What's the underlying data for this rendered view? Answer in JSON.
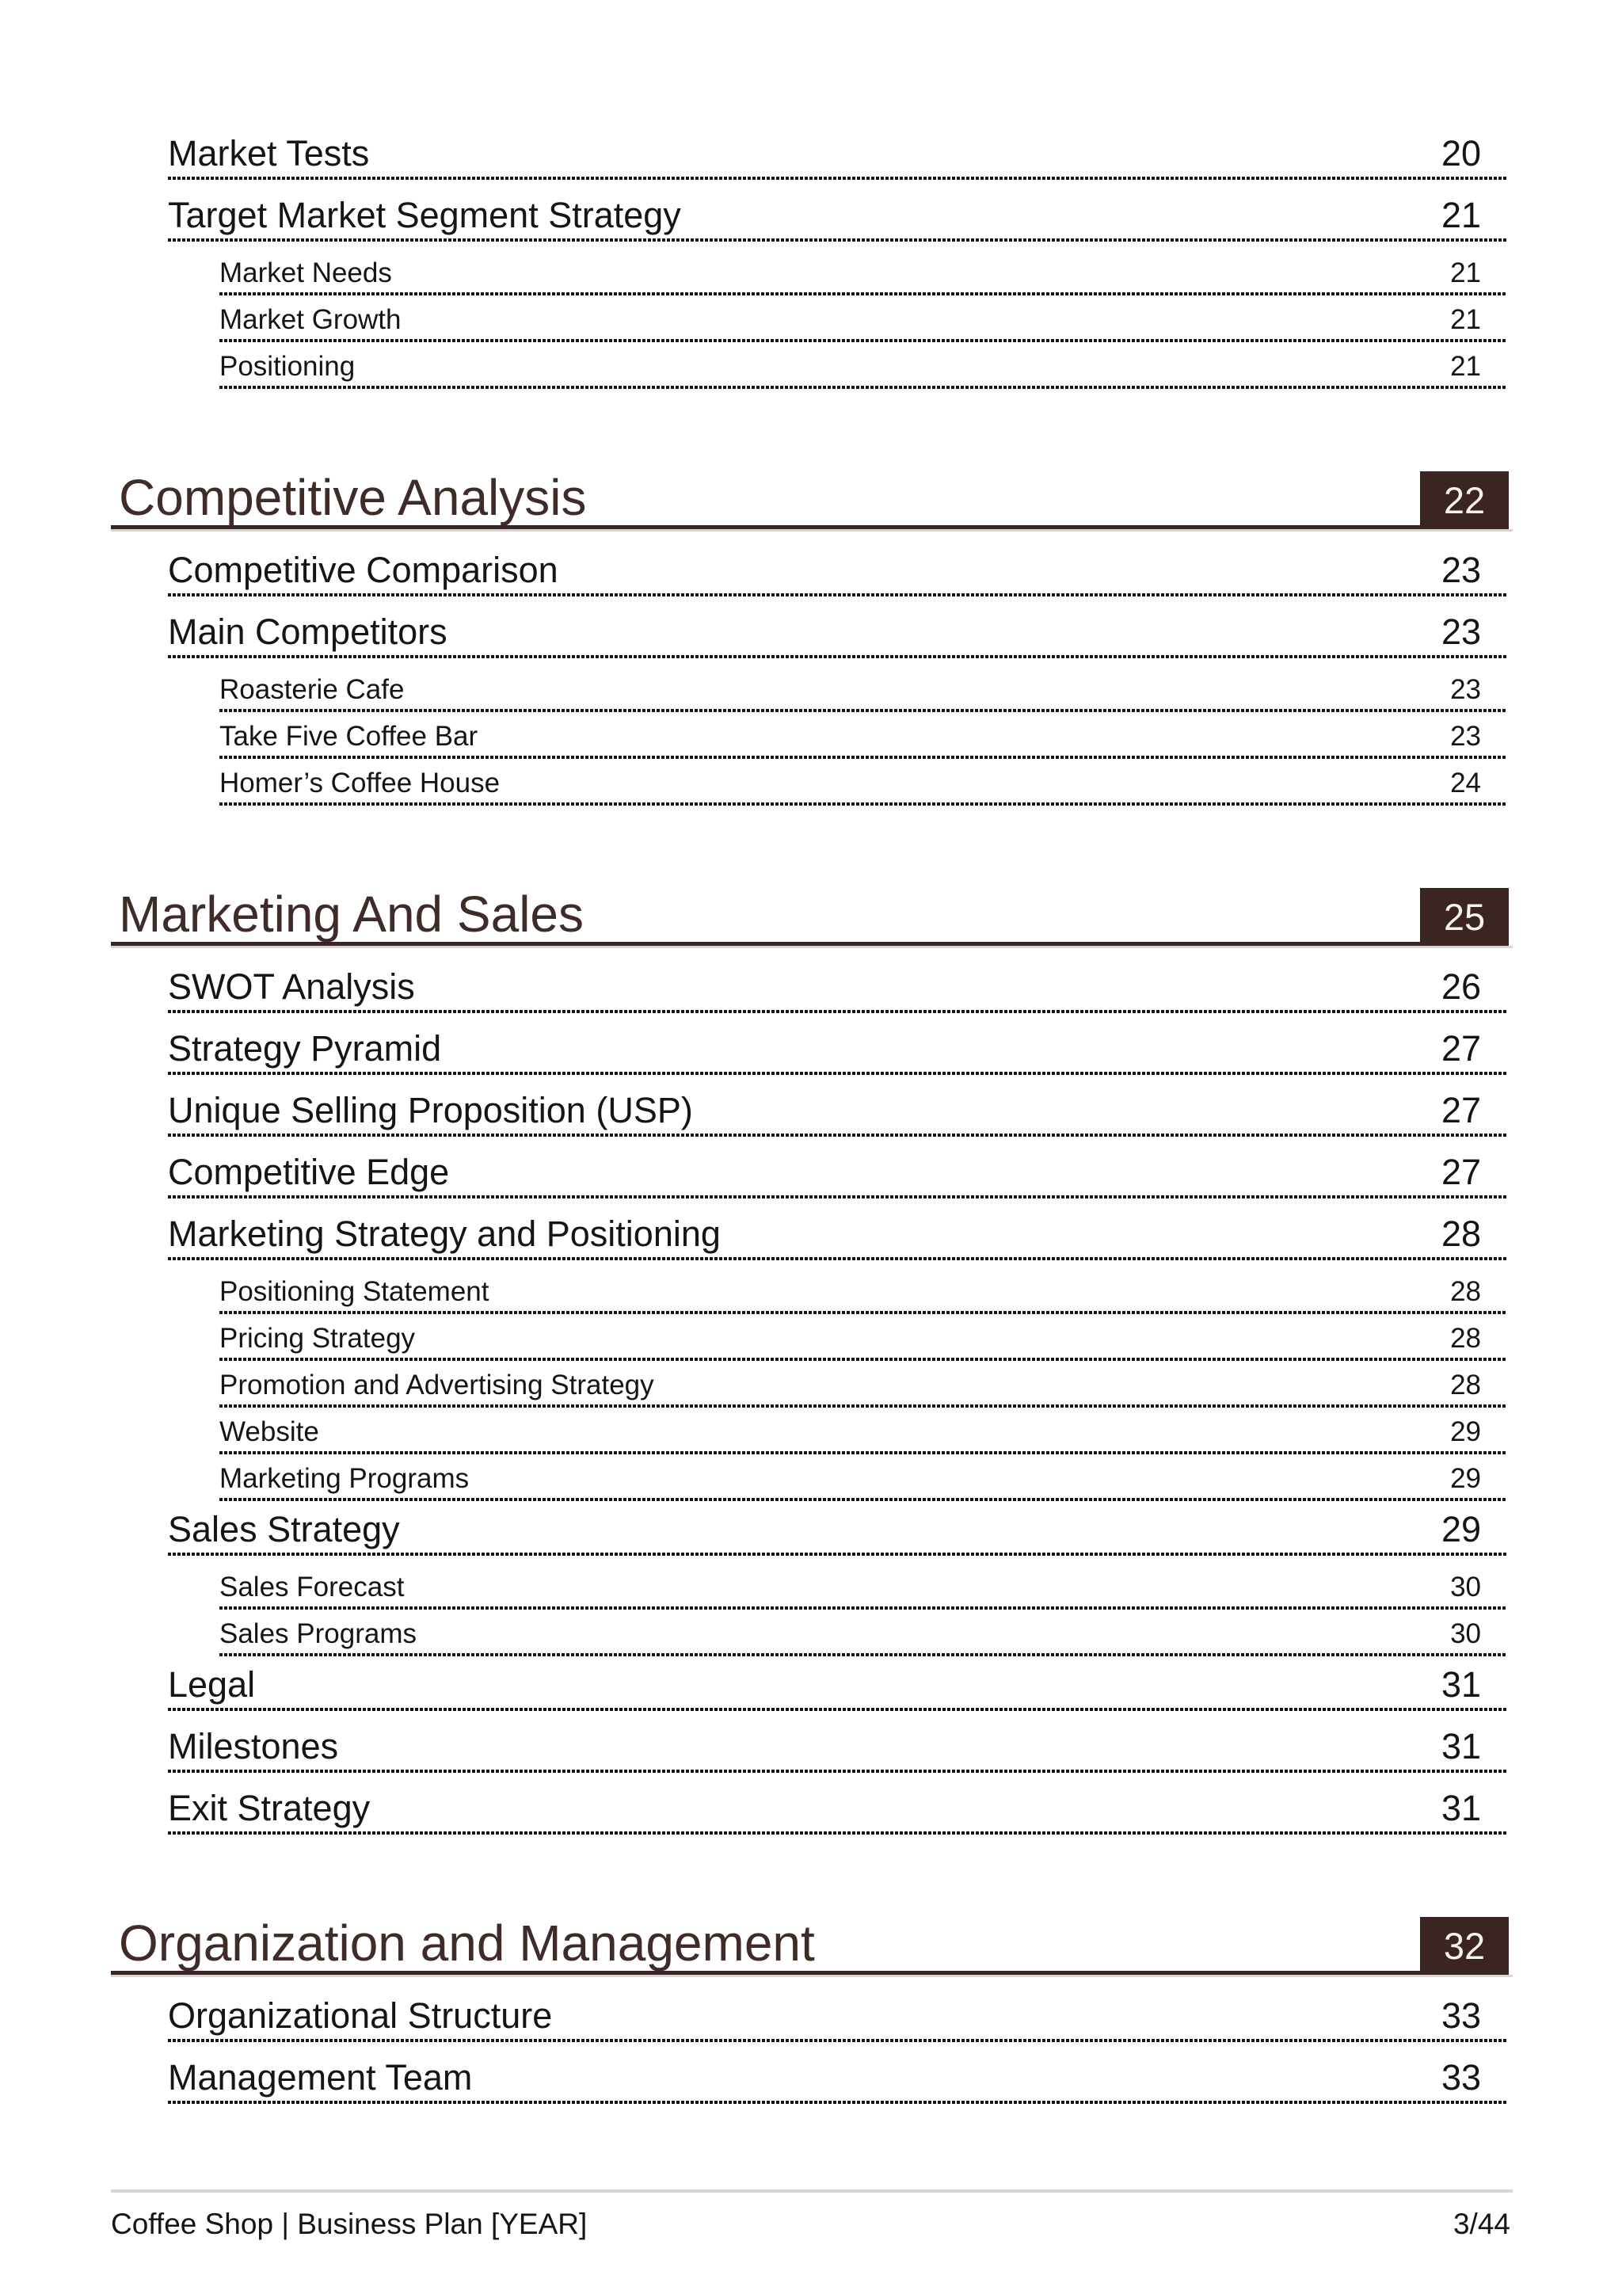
{
  "colors": {
    "accent": "#3A2523",
    "section_title_text": "#3F2B27",
    "entry_text": "#171412",
    "leader_dots": "#151515",
    "divider_gray": "#D8D4D2",
    "page_box_number": "#F7F3F0"
  },
  "toc": {
    "sections": [
      {
        "header": null,
        "entries": [
          {
            "label": "Market Tests",
            "page": "20",
            "level": 1
          },
          {
            "label": "Target Market Segment Strategy",
            "page": "21",
            "level": 1
          },
          {
            "label": "Market Needs",
            "page": "21",
            "level": 2
          },
          {
            "label": "Market Growth",
            "page": "21",
            "level": 2
          },
          {
            "label": "Positioning",
            "page": "21",
            "level": 2
          }
        ]
      },
      {
        "header": {
          "title": "Competitive Analysis",
          "page": "22"
        },
        "entries": [
          {
            "label": "Competitive Comparison",
            "page": "23",
            "level": 1
          },
          {
            "label": "Main Competitors",
            "page": "23",
            "level": 1
          },
          {
            "label": "Roasterie Cafe",
            "page": "23",
            "level": 2
          },
          {
            "label": "Take Five Coffee Bar",
            "page": "23",
            "level": 2
          },
          {
            "label": "Homer’s Coffee House",
            "page": "24",
            "level": 2
          }
        ]
      },
      {
        "header": {
          "title": "Marketing And Sales",
          "page": "25"
        },
        "entries": [
          {
            "label": "SWOT Analysis",
            "page": "26",
            "level": 1
          },
          {
            "label": "Strategy Pyramid",
            "page": "27",
            "level": 1
          },
          {
            "label": "Unique Selling Proposition (USP)",
            "page": "27",
            "level": 1
          },
          {
            "label": "Competitive Edge",
            "page": "27",
            "level": 1
          },
          {
            "label": "Marketing Strategy and Positioning",
            "page": "28",
            "level": 1
          },
          {
            "label": "Positioning Statement",
            "page": "28",
            "level": 2
          },
          {
            "label": "Pricing Strategy",
            "page": "28",
            "level": 2
          },
          {
            "label": "Promotion and Advertising Strategy",
            "page": "28",
            "level": 2
          },
          {
            "label": "Website",
            "page": "29",
            "level": 2
          },
          {
            "label": "Marketing Programs",
            "page": "29",
            "level": 2
          },
          {
            "label": "Sales Strategy",
            "page": "29",
            "level": 1
          },
          {
            "label": "Sales Forecast",
            "page": "30",
            "level": 2
          },
          {
            "label": "Sales Programs",
            "page": "30",
            "level": 2
          },
          {
            "label": "Legal",
            "page": "31",
            "level": 1
          },
          {
            "label": "Milestones",
            "page": "31",
            "level": 1
          },
          {
            "label": "Exit Strategy",
            "page": "31",
            "level": 1
          }
        ]
      },
      {
        "header": {
          "title": "Organization and Management",
          "page": "32"
        },
        "entries": [
          {
            "label": "Organizational Structure",
            "page": "33",
            "level": 1
          },
          {
            "label": "Management Team",
            "page": "33",
            "level": 1
          }
        ]
      }
    ]
  },
  "footer": {
    "left": "Coffee Shop | Business Plan [YEAR]",
    "right": "3/44"
  }
}
